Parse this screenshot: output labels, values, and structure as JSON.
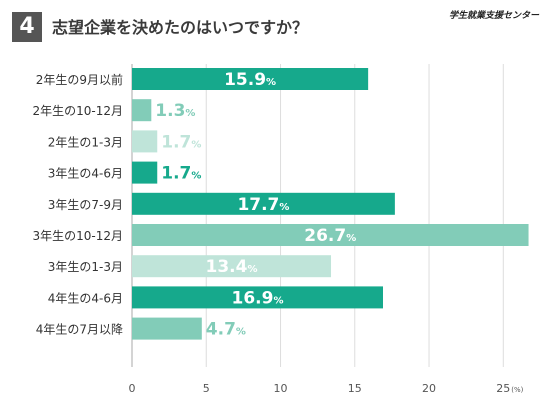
{
  "question": {
    "number": "4",
    "title": "志望企業を決めたのはいつですか？"
  },
  "org_logo": "学生就業支援センター",
  "colors": {
    "dark": "#16a98c",
    "mid": "#82ccb8",
    "light": "#bfe4d9",
    "grid": "#dddddd",
    "axis": "#aaaaaa"
  },
  "chart_data": {
    "type": "bar",
    "orientation": "horizontal",
    "categories": [
      "2年生の9月以前",
      "2年生の10-12月",
      "2年生の1-3月",
      "3年生の4-6月",
      "3年生の7-9月",
      "3年生の10-12月",
      "3年生の1-3月",
      "4年生の4-6月",
      "4年生の7月以降"
    ],
    "values": [
      15.9,
      1.3,
      1.7,
      1.7,
      17.7,
      26.7,
      13.4,
      16.9,
      4.7
    ],
    "bar_colors": [
      "dark",
      "mid",
      "light",
      "dark",
      "dark",
      "mid",
      "light",
      "dark",
      "mid"
    ],
    "value_suffix": "%",
    "xlim": [
      0,
      27
    ],
    "xticks": [
      0,
      5,
      10,
      15,
      20,
      25
    ],
    "x_unit": "(%)",
    "grid": true
  }
}
